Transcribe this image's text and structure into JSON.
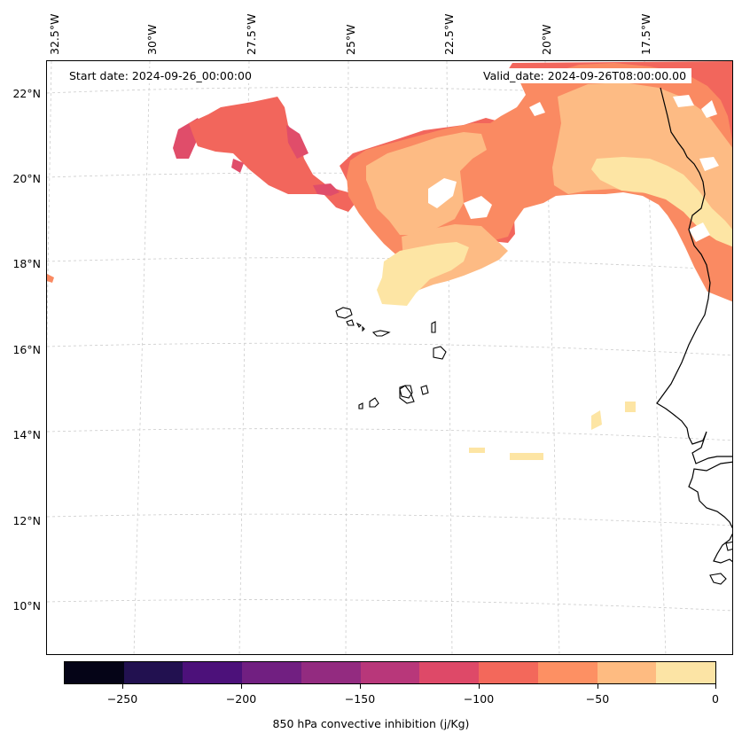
{
  "header": {
    "start_date": "Start date: 2024-09-26_00:00:00",
    "valid_date": "Valid_date: 2024-09-26T08:00:00.00"
  },
  "map": {
    "lon_labels": [
      "32.5°W",
      "30°W",
      "27.5°W",
      "25°W",
      "22.5°W",
      "20°W",
      "17.5°W"
    ],
    "lat_labels": [
      "22°N",
      "20°N",
      "18°N",
      "16°N",
      "14°N",
      "12°N",
      "10°N"
    ],
    "field_colors": {
      "m150": "#d8476b",
      "m125": "#e04d6a",
      "m100": "#f2665c",
      "m75": "#fa8a62",
      "m50": "#fdbb84",
      "m25": "#fde5a4"
    }
  },
  "colorbar": {
    "label": "850 hPa convective inhibition (j/Kg)",
    "colors": [
      "#050417",
      "#221150",
      "#4c117a",
      "#711f81",
      "#932b80",
      "#b8377a",
      "#de4968",
      "#f3685b",
      "#fd9063",
      "#febb81",
      "#fce4a5"
    ],
    "tick_labels": [
      "−250",
      "−200",
      "−150",
      "−100",
      "−50",
      "0"
    ]
  }
}
